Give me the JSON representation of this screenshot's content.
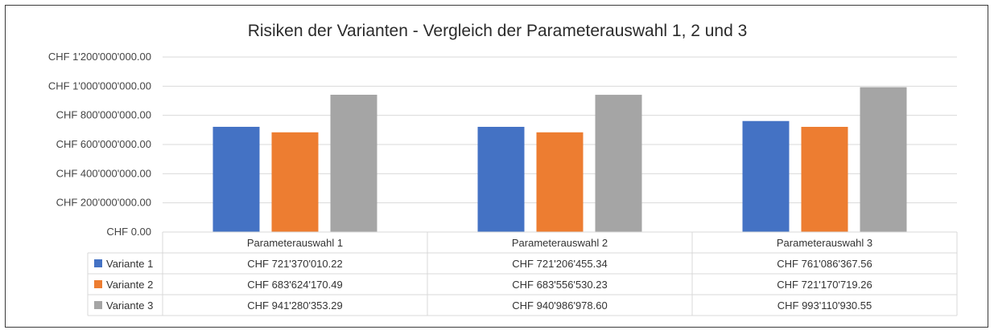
{
  "chart_data": {
    "type": "bar",
    "title": "Risiken der Varianten - Vergleich der Parameterauswahl 1, 2 und 3",
    "categories": [
      "Parameterauswahl 1",
      "Parameterauswahl 2",
      "Parameterauswahl 3"
    ],
    "ylim": [
      0,
      1200000000
    ],
    "yticks": [
      0,
      200000000,
      400000000,
      600000000,
      800000000,
      1000000000,
      1200000000
    ],
    "ytick_labels": [
      "CHF 0.00",
      "CHF 200'000'000.00",
      "CHF 400'000'000.00",
      "CHF 600'000'000.00",
      "CHF 800'000'000.00",
      "CHF 1'000'000'000.00",
      "CHF 1'200'000'000.00"
    ],
    "grid": true,
    "legend_placement": "data-table-left",
    "series": [
      {
        "name": "Variante 1",
        "color": "#4472C4",
        "values": [
          721370010.22,
          721206455.34,
          761086367.56
        ],
        "labels": [
          "CHF 721'370'010.22",
          "CHF 721'206'455.34",
          "CHF 761'086'367.56"
        ]
      },
      {
        "name": "Variante 2",
        "color": "#ED7D31",
        "values": [
          683624170.49,
          683556530.23,
          721170719.26
        ],
        "labels": [
          "CHF 683'624'170.49",
          "CHF 683'556'530.23",
          "CHF 721'170'719.26"
        ]
      },
      {
        "name": "Variante 3",
        "color": "#A5A5A5",
        "values": [
          941280353.29,
          940986978.6,
          993110930.55
        ],
        "labels": [
          "CHF 941'280'353.29",
          "CHF 940'986'978.60",
          "CHF 993'110'930.55"
        ]
      }
    ]
  }
}
